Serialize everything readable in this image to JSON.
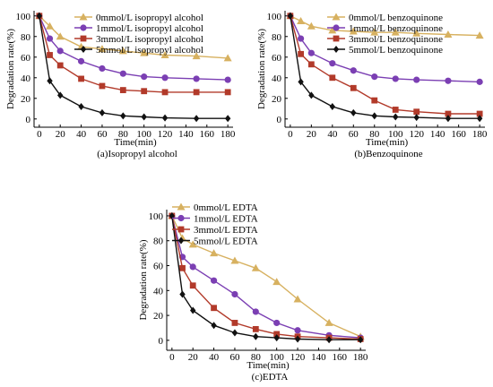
{
  "figure": {
    "chart_data": [
      {
        "type": "line",
        "caption": "(a)Isopropyl alcohol",
        "xlabel": "Time(min)",
        "ylabel": "Degradation rate(%)",
        "xlim": [
          -5,
          185
        ],
        "ylim": [
          -8,
          105
        ],
        "xticks": [
          0,
          20,
          40,
          60,
          80,
          100,
          120,
          140,
          160,
          180
        ],
        "yticks": [
          0,
          20,
          40,
          60,
          80,
          100
        ],
        "grid": false,
        "legend_position": "top-right",
        "x": [
          0,
          10,
          20,
          40,
          60,
          80,
          100,
          120,
          150,
          180
        ],
        "series": [
          {
            "name": "0mmol/L isopropyl alcohol",
            "marker": "triangle",
            "color": "#D7B160",
            "values": [
              100,
              90,
              80,
              70,
              68,
              66,
              64,
              62,
              61,
              59
            ]
          },
          {
            "name": "1mmol/L isopropyl alcohol",
            "marker": "circle",
            "color": "#7B3FB3",
            "values": [
              100,
              78,
              66,
              56,
              49,
              44,
              41,
              40,
              39,
              38
            ]
          },
          {
            "name": "3mmol/L isopropyl alcohol",
            "marker": "square",
            "color": "#B23A2A",
            "values": [
              100,
              62,
              52,
              39,
              32,
              28,
              27,
              26,
              26,
              26
            ]
          },
          {
            "name": "5mmol/L isopropyl alcohol",
            "marker": "diamond",
            "color": "#111111",
            "values": [
              100,
              37,
              23,
              12,
              6,
              3,
              2,
              1,
              0.5,
              0.5
            ]
          }
        ]
      },
      {
        "type": "line",
        "caption": "(b)Benzoquinone",
        "xlabel": "Time(min)",
        "ylabel": "Degradation rate(%)",
        "xlim": [
          -5,
          185
        ],
        "ylim": [
          -8,
          105
        ],
        "xticks": [
          0,
          20,
          40,
          60,
          80,
          100,
          120,
          140,
          160,
          180
        ],
        "yticks": [
          0,
          20,
          40,
          60,
          80,
          100
        ],
        "grid": false,
        "legend_position": "top-right",
        "x": [
          0,
          10,
          20,
          40,
          60,
          80,
          100,
          120,
          150,
          180
        ],
        "series": [
          {
            "name": "0mmol/L benzoquinone",
            "marker": "triangle",
            "color": "#D7B160",
            "values": [
              100,
              95,
              90,
              86,
              85,
              84,
              84,
              83,
              82,
              81
            ]
          },
          {
            "name": "1mmol/L benzoquinone",
            "marker": "circle",
            "color": "#7B3FB3",
            "values": [
              100,
              78,
              64,
              54,
              47,
              41,
              39,
              38,
              37,
              36
            ]
          },
          {
            "name": "3mmol/L benzoquinone",
            "marker": "square",
            "color": "#B23A2A",
            "values": [
              100,
              63,
              53,
              40,
              30,
              18,
              9,
              7,
              5,
              5
            ]
          },
          {
            "name": "5mmol/L benzoquinone",
            "marker": "diamond",
            "color": "#111111",
            "values": [
              100,
              36,
              23,
              12,
              6,
              3,
              2,
              1.5,
              0.5,
              0.5
            ]
          }
        ]
      },
      {
        "type": "line",
        "caption": "(c)EDTA",
        "xlabel": "Time(min)",
        "ylabel": "Degradation rate(%)",
        "xlim": [
          -5,
          185
        ],
        "ylim": [
          -8,
          105
        ],
        "xticks": [
          0,
          20,
          40,
          60,
          80,
          100,
          120,
          140,
          160,
          180
        ],
        "yticks": [
          0,
          20,
          40,
          60,
          80,
          100
        ],
        "grid": false,
        "legend_position": "top-right",
        "x": [
          0,
          10,
          20,
          40,
          60,
          80,
          100,
          120,
          150,
          180
        ],
        "series": [
          {
            "name": "0mmol/L EDTA",
            "marker": "triangle",
            "color": "#D7B160",
            "values": [
              100,
              82,
              77,
              70,
              64,
              58,
              47,
              33,
              14,
              3
            ]
          },
          {
            "name": "1mmol/L EDTA",
            "marker": "circle",
            "color": "#7B3FB3",
            "values": [
              100,
              67,
              59,
              48,
              37,
              23,
              14,
              8,
              4,
              2
            ]
          },
          {
            "name": "3mmol/L EDTA",
            "marker": "square",
            "color": "#B23A2A",
            "values": [
              100,
              58,
              44,
              26,
              14,
              9,
              5,
              3,
              2,
              1
            ]
          },
          {
            "name": "5mmol/L EDTA",
            "marker": "diamond",
            "color": "#111111",
            "values": [
              100,
              37,
              24,
              12,
              6,
              3,
              2,
              1,
              0.5,
              0.5
            ]
          }
        ]
      }
    ]
  }
}
